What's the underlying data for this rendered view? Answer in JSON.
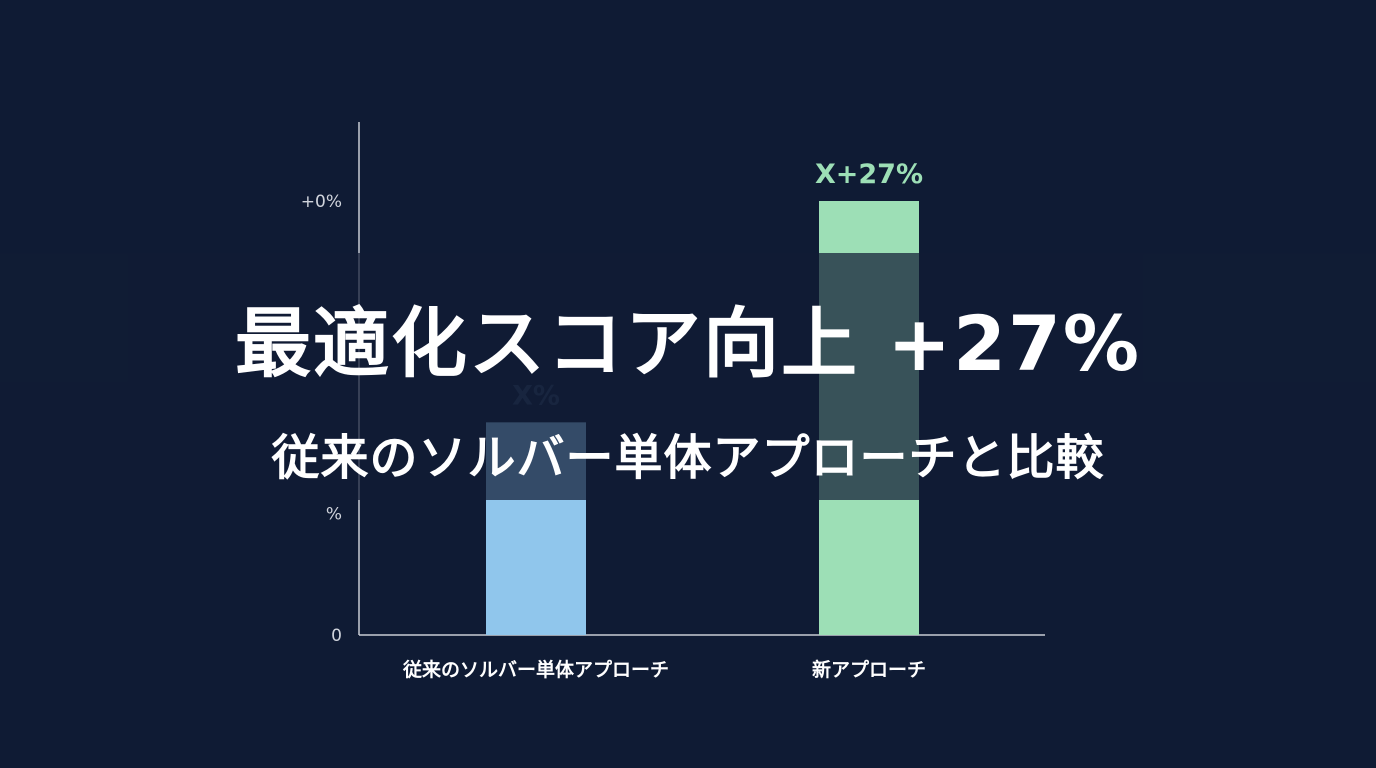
{
  "chart_data": {
    "type": "bar",
    "categories": [
      "従来のソルバー単体アプローチ",
      "新アプローチ"
    ],
    "values": [
      0.49,
      1.0
    ],
    "data_labels": [
      "X%",
      "X+27%"
    ],
    "colors": [
      "#90c6ec",
      "#9ddfb6"
    ],
    "label_colors": [
      "#2b3f5c",
      "#9ddfb6"
    ],
    "yticks": [
      {
        "value": 0,
        "label": "0"
      },
      {
        "value": 0.28,
        "label": "%"
      },
      {
        "value": 1.0,
        "label": "+0%"
      }
    ],
    "ylim": [
      0,
      1.18
    ],
    "grid": false,
    "title": "",
    "xlabel": "",
    "ylabel": ""
  },
  "overlay": {
    "headline": "最適化スコア向上 +27%",
    "subheadline": "従来のソルバー単体アプローチと比較"
  },
  "colors": {
    "background": "#0f1b34",
    "axis": "#c8ccd4"
  }
}
